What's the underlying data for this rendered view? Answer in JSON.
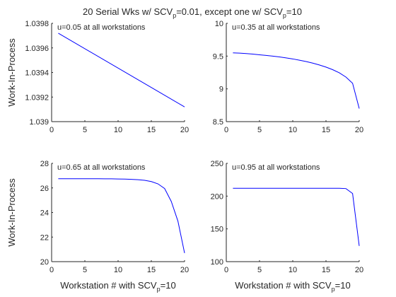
{
  "figure": {
    "title_pre": "20 Serial Wks w/ SCV",
    "title_sub1": "p",
    "title_mid": "=0.01, except one w/ SCV",
    "title_sub2": "p",
    "title_post": "=10"
  },
  "colors": {
    "line": "#0000ff",
    "axis": "#262626",
    "text": "#000000"
  },
  "chart_data": [
    {
      "type": "line",
      "panel": "top-left",
      "annotation": "u=0.05 at all workstations",
      "xlabel": "",
      "ylabel": "Work-In-Process",
      "xlim": [
        0,
        20
      ],
      "ylim": [
        1.039,
        1.0398
      ],
      "xticks": [
        "0",
        "5",
        "10",
        "15",
        "20"
      ],
      "yticks": [
        "1.039",
        "1.0392",
        "1.0394",
        "1.0396",
        "1.0398"
      ],
      "ytick_values": [
        1.039,
        1.0392,
        1.0394,
        1.0396,
        1.0398
      ],
      "x": [
        1,
        20
      ],
      "y": [
        1.03972,
        1.03912
      ]
    },
    {
      "type": "line",
      "panel": "top-right",
      "annotation": "u=0.35 at all workstations",
      "xlabel": "",
      "ylabel": "",
      "xlim": [
        0,
        20
      ],
      "ylim": [
        8.5,
        10
      ],
      "xticks": [
        "0",
        "5",
        "10",
        "15",
        "20"
      ],
      "yticks": [
        "8.5",
        "9",
        "9.5",
        "10"
      ],
      "ytick_values": [
        8.5,
        9,
        9.5,
        10
      ],
      "x": [
        1,
        2,
        3,
        4,
        5,
        6,
        7,
        8,
        9,
        10,
        11,
        12,
        13,
        14,
        15,
        16,
        17,
        18,
        19,
        20
      ],
      "y": [
        9.55,
        9.545,
        9.538,
        9.53,
        9.52,
        9.51,
        9.5,
        9.487,
        9.473,
        9.457,
        9.438,
        9.417,
        9.393,
        9.365,
        9.332,
        9.293,
        9.245,
        9.18,
        9.085,
        8.7
      ]
    },
    {
      "type": "line",
      "panel": "bottom-left",
      "annotation": "u=0.65 at all workstations",
      "xlabel": "Workstation # with SCV",
      "xlabel_sub": "p",
      "xlabel_post": "=10",
      "ylabel": "Work-In-Process",
      "xlim": [
        0,
        20
      ],
      "ylim": [
        20,
        28
      ],
      "xticks": [
        "0",
        "5",
        "10",
        "15",
        "20"
      ],
      "yticks": [
        "20",
        "22",
        "24",
        "26",
        "28"
      ],
      "ytick_values": [
        20,
        22,
        24,
        26,
        28
      ],
      "x": [
        1,
        2,
        3,
        4,
        5,
        6,
        7,
        8,
        9,
        10,
        11,
        12,
        13,
        14,
        15,
        16,
        17,
        18,
        19,
        20
      ],
      "y": [
        26.75,
        26.75,
        26.75,
        26.75,
        26.75,
        26.75,
        26.75,
        26.74,
        26.74,
        26.73,
        26.72,
        26.7,
        26.67,
        26.62,
        26.52,
        26.33,
        25.95,
        24.9,
        23.3,
        20.7
      ]
    },
    {
      "type": "line",
      "panel": "bottom-right",
      "annotation": "u=0.95 at all workstations",
      "xlabel": "Workstation # with SCV",
      "xlabel_sub": "p",
      "xlabel_post": "=10",
      "ylabel": "",
      "xlim": [
        0,
        20
      ],
      "ylim": [
        100,
        250
      ],
      "xticks": [
        "0",
        "5",
        "10",
        "15",
        "20"
      ],
      "yticks": [
        "100",
        "150",
        "200",
        "250"
      ],
      "ytick_values": [
        100,
        150,
        200,
        250
      ],
      "x": [
        1,
        2,
        3,
        4,
        5,
        6,
        7,
        8,
        9,
        10,
        11,
        12,
        13,
        14,
        15,
        16,
        17,
        18,
        19,
        20
      ],
      "y": [
        212,
        212,
        212,
        212,
        212,
        212,
        212,
        212,
        212,
        212,
        212,
        212,
        212,
        212,
        212,
        212,
        212,
        211.5,
        204,
        124
      ]
    }
  ]
}
